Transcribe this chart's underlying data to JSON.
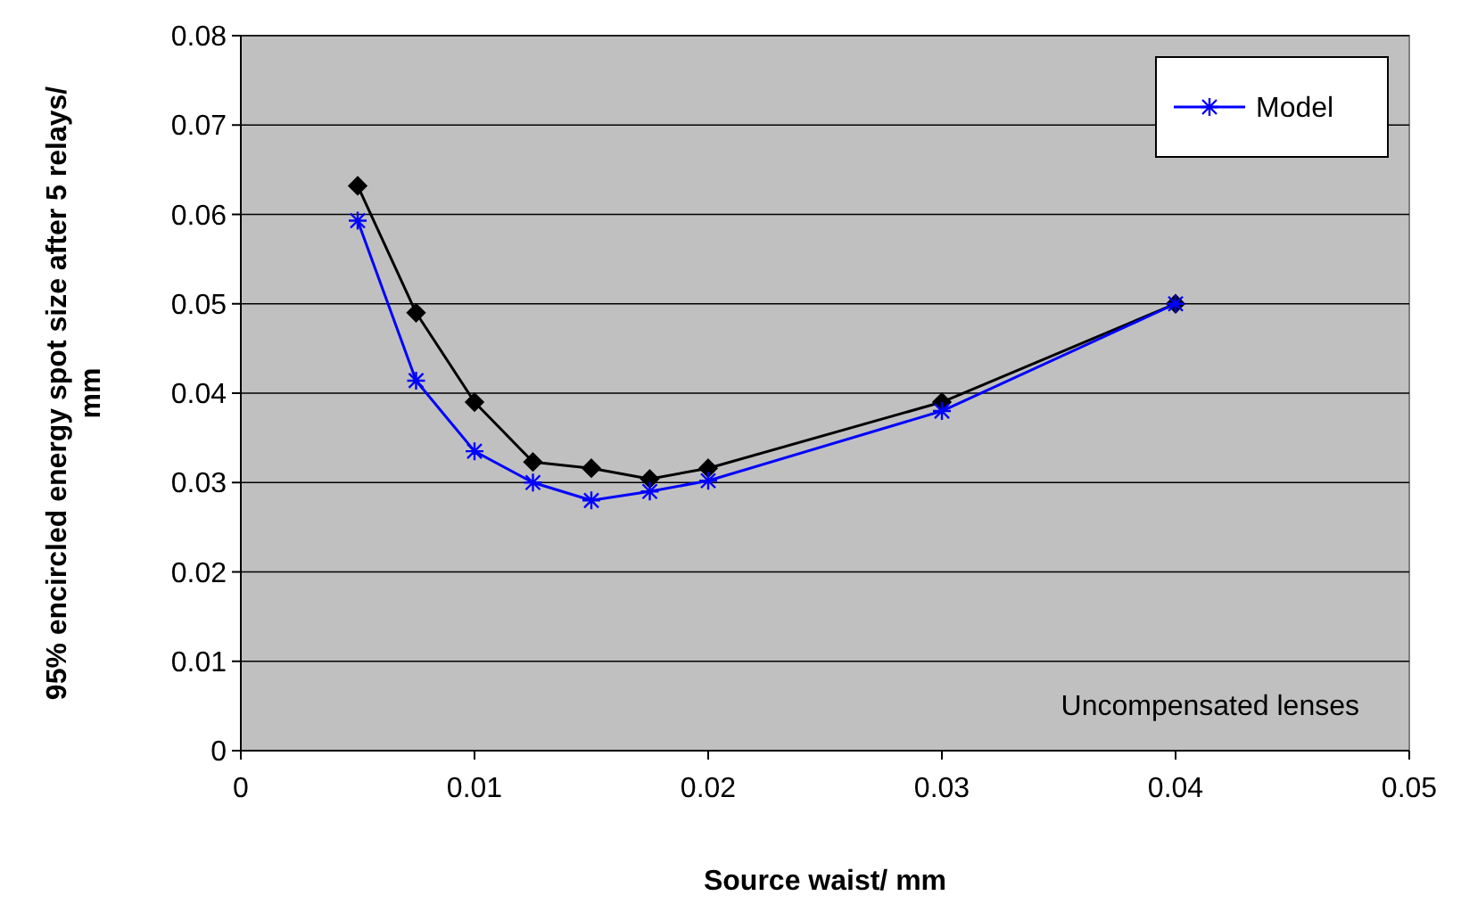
{
  "chart_data": {
    "type": "line",
    "xlabel": "Source waist/ mm",
    "ylabel": "95% encircled energy spot size after 5 relays/ mm",
    "x": [
      0.005,
      0.0075,
      0.01,
      0.0125,
      0.015,
      0.0175,
      0.02,
      0.03,
      0.04
    ],
    "series": [
      {
        "color": "#000000",
        "marker": "diamond",
        "values": [
          0.0632,
          0.049,
          0.039,
          0.0323,
          0.0316,
          0.0304,
          0.0316,
          0.039,
          0.05
        ]
      },
      {
        "name": "Model",
        "color": "#0000ff",
        "marker": "cross",
        "values": [
          0.0593,
          0.0414,
          0.0335,
          0.03,
          0.028,
          0.029,
          0.0302,
          0.038,
          0.05
        ]
      }
    ],
    "xlim": [
      0,
      0.05
    ],
    "xticks": [
      0,
      0.01,
      0.02,
      0.03,
      0.04,
      0.05
    ],
    "ylim": [
      0,
      0.08
    ],
    "yticks": [
      0,
      0.01,
      0.02,
      0.03,
      0.04,
      0.05,
      0.06,
      0.07,
      0.08
    ],
    "grid": "y",
    "legend": "top right",
    "line_style": "solid",
    "annotations": [
      "Uncompensated lenses"
    ]
  }
}
